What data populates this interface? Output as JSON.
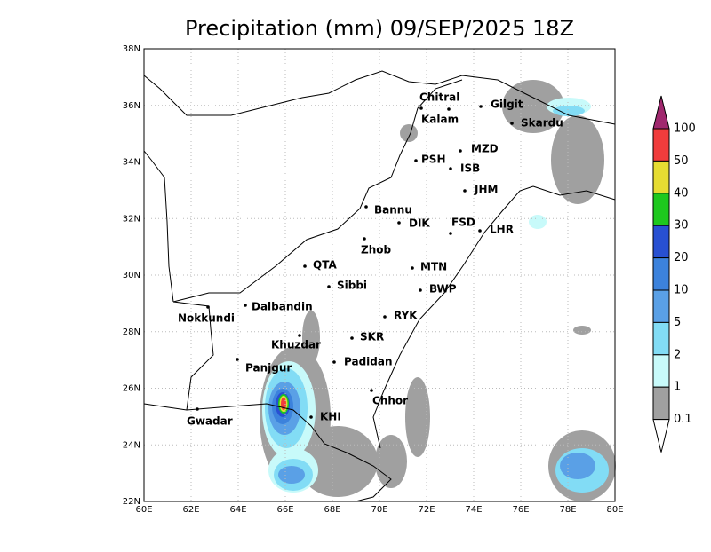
{
  "title": "Precipitation (mm) 09/SEP/2025 18Z",
  "map": {
    "lat_labels": [
      "38N",
      "36N",
      "34N",
      "32N",
      "30N",
      "28N",
      "26N",
      "24N",
      "22N"
    ],
    "lon_labels": [
      "60E",
      "62E",
      "64E",
      "66E",
      "68E",
      "70E",
      "72E",
      "74E",
      "76E",
      "78E",
      "80E"
    ]
  },
  "cities": [
    "Chitral",
    "Gilgit",
    "Kalam",
    "Skardu",
    "MZD",
    "PSH",
    "ISB",
    "JHM",
    "Bannu",
    "DIK",
    "FSD",
    "LHR",
    "Zhob",
    "QTA",
    "MTN",
    "Sibbi",
    "BWP",
    "Dalbandin",
    "Nokkundi",
    "RYK",
    "Khuzdar",
    "SKR",
    "Panjgur",
    "Padidan",
    "Chhor",
    "KHI",
    "Gwadar"
  ],
  "colorbar": {
    "levels": [
      100,
      50,
      40,
      30,
      20,
      10,
      5,
      2,
      1,
      0.1
    ],
    "colors": [
      "#a0286e",
      "#f03c3c",
      "#e6dc32",
      "#1ec81e",
      "#2850d2",
      "#3c82dc",
      "#5aa0e6",
      "#82dcf5",
      "#c8fafa",
      "#a0a0a0",
      "#ffffff"
    ]
  }
}
